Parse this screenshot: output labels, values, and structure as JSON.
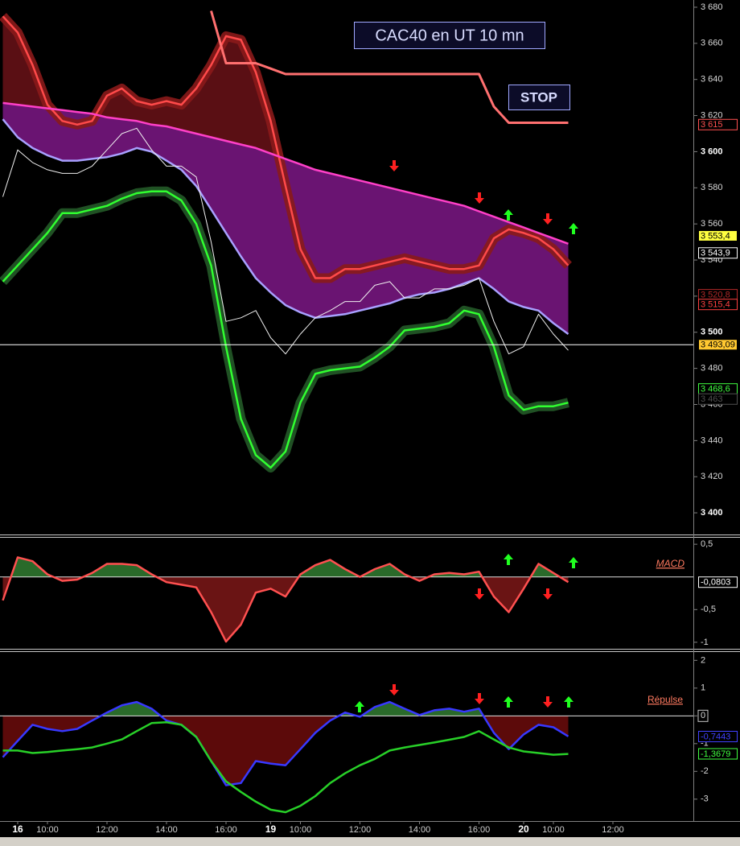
{
  "chart_data": [
    {
      "type": "line",
      "title": "CAC40 en UT 10 mn",
      "annotations": [
        "STOP"
      ],
      "ylim": [
        3388,
        3684
      ],
      "yticks": [
        {
          "value": 3400,
          "label": "3 400"
        },
        {
          "value": 3420,
          "label": "3 420"
        },
        {
          "value": 3440,
          "label": "3 440"
        },
        {
          "value": 3460,
          "label": "3 460"
        },
        {
          "value": 3480,
          "label": "3 480"
        },
        {
          "value": 3500,
          "label": "3 500"
        },
        {
          "value": 3520,
          "label": "3 520"
        },
        {
          "value": 3540,
          "label": "3 540"
        },
        {
          "value": 3560,
          "label": "3 560"
        },
        {
          "value": 3580,
          "label": "3 580"
        },
        {
          "value": 3600,
          "label": "3 600"
        },
        {
          "value": 3620,
          "label": "3 620"
        },
        {
          "value": 3640,
          "label": "3 640"
        },
        {
          "value": 3660,
          "label": "3 660"
        },
        {
          "value": 3680,
          "label": "3 680"
        }
      ],
      "series": [
        {
          "color": "#ff4a4a",
          "glow": "#8a1a1a",
          "fill": "#5a0f14",
          "values": [
            3675,
            3666,
            3648,
            3626,
            3617,
            3615,
            3617,
            3631,
            3635,
            3628,
            3626,
            3628,
            3626,
            3635,
            3648,
            3664,
            3662,
            3644,
            3617,
            3581,
            3546,
            3530,
            3530,
            3535,
            3535,
            3537,
            3539,
            3541,
            3539,
            3537,
            3535,
            3535,
            3537,
            3552,
            3557,
            3555,
            3552,
            3546,
            3537,
            null,
            null,
            null,
            null,
            null,
            null,
            null,
            null
          ]
        },
        {
          "color": "#ff40c8",
          "fill": "#6a1472",
          "values": [
            3627,
            3626,
            3625,
            3624,
            3623,
            3622,
            3621,
            3619,
            3618,
            3617,
            3615,
            3614,
            3612,
            3610,
            3608,
            3606,
            3604,
            3602,
            3599,
            3596,
            3593,
            3590,
            3588,
            3586,
            3584,
            3582,
            3580,
            3578,
            3576,
            3574,
            3572,
            3570,
            3567,
            3564,
            3561,
            3558,
            3555,
            3552,
            3549,
            null,
            null,
            null,
            null,
            null,
            null,
            null,
            null
          ]
        },
        {
          "color": "#a8a0ff",
          "fill_base": true,
          "values": [
            3618,
            3608,
            3602,
            3598,
            3595,
            3595,
            3596,
            3597,
            3599,
            3602,
            3600,
            3595,
            3590,
            3581,
            3568,
            3555,
            3542,
            3530,
            3522,
            3515,
            3511,
            3508,
            3509,
            3510,
            3512,
            3514,
            3516,
            3519,
            3521,
            3522,
            3524,
            3527,
            3530,
            3524,
            3517,
            3514,
            3512,
            3505,
            3499,
            null,
            null,
            null,
            null,
            null,
            null,
            null,
            null
          ]
        },
        {
          "color": "#30ff30",
          "glow": "#245a28",
          "values": [
            3528,
            3537,
            3546,
            3555,
            3566,
            3566,
            3568,
            3570,
            3574,
            3577,
            3578,
            3578,
            3573,
            3560,
            3537,
            3492,
            3452,
            3432,
            3425,
            3434,
            3461,
            3477,
            3479,
            3480,
            3481,
            3486,
            3492,
            3501,
            3502,
            3503,
            3505,
            3512,
            3510,
            3492,
            3465,
            3457,
            3459,
            3459,
            3461,
            null,
            null,
            null,
            null,
            null,
            null,
            null,
            null
          ]
        },
        {
          "color": "#ff7070",
          "width": 3,
          "values": [
            null,
            null,
            null,
            null,
            null,
            null,
            null,
            null,
            null,
            null,
            null,
            null,
            null,
            null,
            3678,
            3649,
            3649,
            3649,
            3646,
            3643,
            3643,
            3643,
            3643,
            3643,
            3643,
            3643,
            3643,
            3643,
            3643,
            3643,
            3643,
            3643,
            3643,
            3625,
            3616,
            3616,
            3616,
            3616,
            3616,
            null,
            null,
            null,
            null,
            null,
            null,
            null,
            null
          ]
        },
        {
          "color": "#f0f0f0",
          "width": 1,
          "values": [
            3575,
            3601,
            3594,
            3590,
            3588,
            3588,
            3592,
            3601,
            3610,
            3613,
            3601,
            3592,
            3592,
            3586,
            3550,
            3506,
            3508,
            3512,
            3497,
            3488,
            3499,
            3508,
            3512,
            3517,
            3517,
            3526,
            3528,
            3519,
            3519,
            3524,
            3524,
            3526,
            3530,
            3506,
            3488,
            3492,
            3510,
            3499,
            3490,
            null,
            null,
            null,
            null,
            null,
            null,
            null,
            null
          ]
        }
      ],
      "price_tags": [
        {
          "value": 3615,
          "label": "3 615",
          "color": "#ff5050"
        },
        {
          "value": 3553.4,
          "label": "3 553,4",
          "color": "#000000",
          "background": "#ffff40"
        },
        {
          "value": 3543.9,
          "label": "3 543,9",
          "color": "#ffffff"
        },
        {
          "value": 3520.8,
          "label": "3 520,8",
          "color": "#b02828"
        },
        {
          "value": 3515.4,
          "label": "3 515,4",
          "color": "#ff4040"
        },
        {
          "value": 3493.09,
          "label": "3 493,09",
          "color": "#000000",
          "background": "#ffc830",
          "line": "#ffffff"
        },
        {
          "value": 3468.6,
          "label": "3 468,6",
          "color": "#40ff40"
        },
        {
          "value": 3463,
          "label": "3 463",
          "color": "#505050"
        }
      ]
    },
    {
      "type": "line",
      "title": "MACD",
      "ylim": [
        -1.1,
        0.6
      ],
      "yticks": [
        {
          "value": 0.5,
          "label": "0,5"
        },
        {
          "value": -0.5,
          "label": "-0,5"
        },
        -1
      ],
      "series": [
        {
          "color": "#ff5050",
          "fill_pos": "#2a6a2a",
          "fill_neg": "#6a1414",
          "values": [
            -0.36,
            0.3,
            0.24,
            0.04,
            -0.06,
            -0.04,
            0.06,
            0.2,
            0.2,
            0.18,
            0.04,
            -0.08,
            -0.12,
            -0.16,
            -0.54,
            -0.99,
            -0.73,
            -0.24,
            -0.18,
            -0.3,
            0.04,
            0.18,
            0.26,
            0.12,
            0,
            0.12,
            0.2,
            0.04,
            -0.06,
            0.04,
            0.06,
            0.04,
            0.08,
            -0.3,
            -0.54,
            -0.18,
            0.2,
            0.06,
            -0.08,
            null,
            null,
            null,
            null,
            null,
            null,
            null,
            null
          ]
        }
      ],
      "price_tags": [
        {
          "value": -0.0803,
          "label": "-0,0803",
          "color": "#ffffff"
        }
      ]
    },
    {
      "type": "line",
      "title": "Répulse",
      "ylim": [
        -3.76,
        2.3
      ],
      "yticks": [
        2,
        1,
        0,
        -1,
        -2,
        -3
      ],
      "categories": [
        null,
        "16",
        null,
        "10:00",
        null,
        null,
        null,
        "12:00",
        null,
        null,
        null,
        "14:00",
        null,
        null,
        null,
        "16:00",
        null,
        null,
        "19",
        null,
        "10:00",
        null,
        null,
        null,
        "12:00",
        null,
        null,
        null,
        "14:00",
        null,
        null,
        null,
        "16:00",
        null,
        null,
        "20",
        null,
        "10:00",
        null,
        null,
        null,
        "12:00",
        null,
        null,
        null,
        null,
        null
      ],
      "series": [
        {
          "color": "#3838ff",
          "fill_pos": "#2a6a2a",
          "fill_neg": "#5c0a0a",
          "values": [
            -1.49,
            -0.9,
            -0.32,
            -0.47,
            -0.55,
            -0.47,
            -0.17,
            0.12,
            0.38,
            0.5,
            0.26,
            -0.17,
            -0.32,
            -0.76,
            -1.63,
            -2.5,
            -2.42,
            -1.63,
            -1.72,
            -1.78,
            -1.2,
            -0.61,
            -0.17,
            0.12,
            -0.03,
            0.32,
            0.5,
            0.26,
            0.03,
            0.2,
            0.26,
            0.15,
            0.26,
            -0.61,
            -1.2,
            -0.67,
            -0.32,
            -0.41,
            -0.74,
            null,
            null,
            null,
            null,
            null,
            null,
            null,
            null
          ]
        },
        {
          "color": "#28d028",
          "values": [
            -1.25,
            -1.25,
            -1.34,
            -1.3,
            -1.25,
            -1.2,
            -1.14,
            -1.0,
            -0.85,
            -0.55,
            -0.26,
            -0.23,
            -0.32,
            -0.76,
            -1.63,
            -2.36,
            -2.74,
            -3.09,
            -3.38,
            -3.47,
            -3.24,
            -2.89,
            -2.42,
            -2.07,
            -1.78,
            -1.55,
            -1.25,
            -1.14,
            -1.05,
            -0.96,
            -0.86,
            -0.76,
            -0.55,
            -0.85,
            -1.14,
            -1.28,
            -1.34,
            -1.4,
            -1.37,
            null,
            null,
            null,
            null,
            null,
            null,
            null,
            null
          ]
        }
      ],
      "price_tags": [
        {
          "value": -0.7443,
          "label": "-0,7443",
          "color": "#4040ff"
        },
        {
          "value": -1.3679,
          "label": "-1,3679",
          "color": "#40ff40"
        }
      ]
    }
  ]
}
